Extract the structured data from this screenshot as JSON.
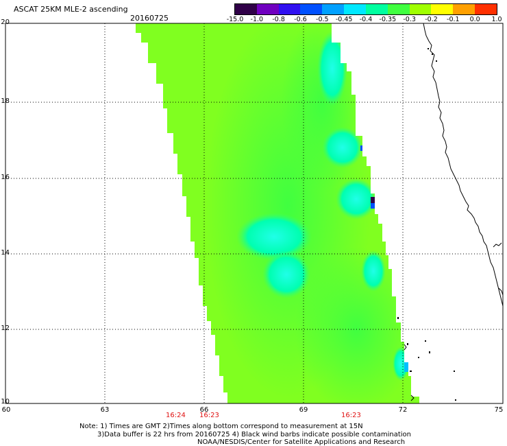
{
  "title": "ASCAT 25KM MLE-2 ascending",
  "date": "20160725",
  "colorbar": {
    "labels": [
      "-15.0",
      "-1.0",
      "-0.8",
      "-0.6",
      "-0.5",
      "-0.45",
      "-0.4",
      "-0.35",
      "-0.3",
      "-0.2",
      "-0.1",
      "0.0",
      "1.0"
    ],
    "colors": [
      "#300048",
      "#7000c0",
      "#3010f0",
      "#0050ff",
      "#00a0ff",
      "#00e8ff",
      "#00ffa0",
      "#40ff40",
      "#a0ff00",
      "#ffff00",
      "#ffa000",
      "#ff3000"
    ]
  },
  "axes": {
    "x_ticks": [
      "60",
      "63",
      "66",
      "69",
      "72",
      "75"
    ],
    "y_ticks": [
      "20",
      "18",
      "16",
      "14",
      "12",
      "10"
    ]
  },
  "time_labels": [
    "16:24",
    "16:23",
    "16:23"
  ],
  "notes": {
    "line1": "Note: 1) Times are GMT 2)Times along bottom correspond to measurement at 15N",
    "line2": "3)Data buffer is 22 hrs from 20160725 4) Black wind barbs indicate possible contamination",
    "line3": "NOAA/NESDIS/Center for Satellite Applications and Research"
  },
  "colors": {
    "swath_base": "#80ff20",
    "swath_mid": "#40ff40",
    "swath_cyan": "#00ffc0",
    "coast": "#000000"
  }
}
